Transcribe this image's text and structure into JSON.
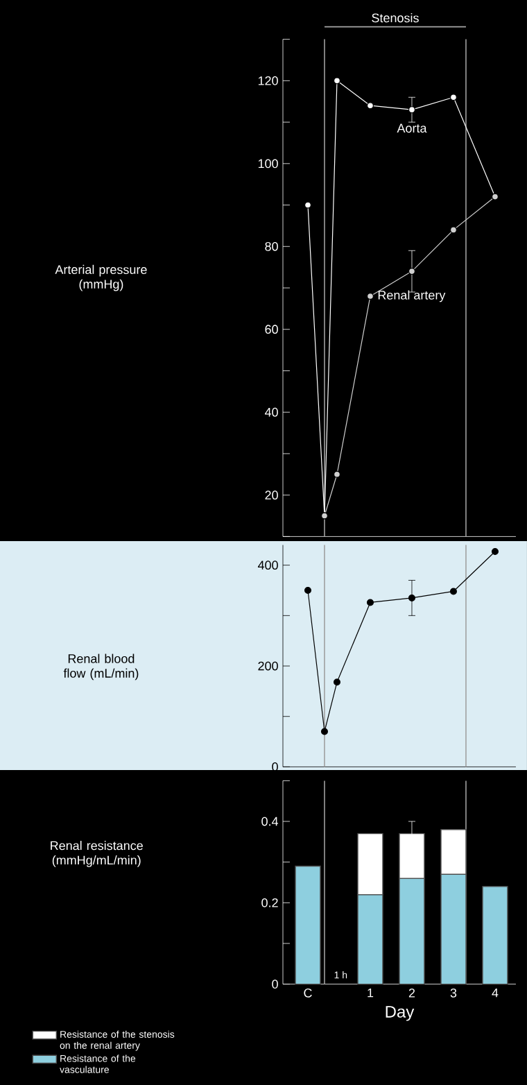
{
  "chart_data": [
    {
      "type": "line",
      "ylabel": "Arterial pressure (mmHg)",
      "xlim": [
        -1.1,
        4.5
      ],
      "ylim": [
        10,
        130
      ],
      "tick_labels": "y",
      "marker": "circle",
      "yticks": [
        {
          "value": 10,
          "label": null
        },
        20,
        {
          "value": 30,
          "label": null
        },
        40,
        {
          "value": 50,
          "label": null
        },
        60,
        {
          "value": 70,
          "label": null
        },
        80,
        {
          "value": 90,
          "label": null
        },
        100,
        {
          "value": 110,
          "label": null
        },
        120,
        {
          "value": 130,
          "label": null
        }
      ],
      "ref_lines": [
        {
          "axis": "x",
          "value": -0.1,
          "color": "#a0a0a0"
        },
        {
          "axis": "x",
          "value": 3.3,
          "color": "#a0a0a0"
        }
      ],
      "annotations": [
        "Stenosis"
      ],
      "series": [
        {
          "name": "Aorta",
          "color": "#ffffff",
          "x": [
            -0.5,
            -0.1,
            0.2,
            1,
            2,
            3,
            4
          ],
          "values": [
            90,
            15,
            120,
            114,
            113,
            116,
            92
          ],
          "errors": [
            null,
            null,
            null,
            null,
            3,
            null,
            null
          ]
        },
        {
          "name": "Renal artery",
          "color": "#d0d0d0",
          "x": [
            -0.1,
            0.2,
            1,
            2,
            3,
            4
          ],
          "values": [
            15,
            25,
            68,
            74,
            84,
            92
          ],
          "errors": [
            null,
            null,
            null,
            5,
            null,
            null
          ]
        }
      ]
    },
    {
      "type": "line",
      "ylabel": "Renal blood flow (mL/min)",
      "xlim": [
        -1.1,
        4.5
      ],
      "ylim": [
        0,
        440
      ],
      "tick_labels": "y",
      "marker": "circle",
      "yticks": [
        0,
        {
          "value": 100,
          "label": null
        },
        200,
        {
          "value": 300,
          "label": null
        },
        400
      ],
      "ref_lines": [
        {
          "axis": "x",
          "value": -0.1,
          "color": "#a0a0a0"
        },
        {
          "axis": "x",
          "value": 3.3,
          "color": "#a0a0a0"
        }
      ],
      "series": [
        {
          "color": "#000000",
          "x": [
            -0.5,
            -0.1,
            0.2,
            1,
            2,
            3,
            4
          ],
          "values": [
            350,
            70,
            168,
            326,
            335,
            348,
            427
          ],
          "errors": [
            null,
            null,
            null,
            null,
            35,
            null,
            null
          ]
        }
      ]
    },
    {
      "type": "bar",
      "stacked": true,
      "ylabel": "Renal resistance (mmHg/mL/min)",
      "xlabel": "Day",
      "xlim": [
        -1.1,
        4.5
      ],
      "ylim": [
        0,
        0.5
      ],
      "legend": "bottom left",
      "x": [
        -0.5,
        1,
        2,
        3,
        4
      ],
      "xticks": [
        {
          "value": -0.5,
          "label": "C"
        },
        1,
        2,
        3,
        4
      ],
      "yticks": [
        0,
        {
          "value": 0.1,
          "label": null
        },
        0.2,
        {
          "value": 0.3,
          "label": null
        },
        0.4,
        {
          "value": 0.5,
          "label": null
        }
      ],
      "ref_lines": [
        {
          "axis": "x",
          "value": -0.1,
          "color": "#a0a0a0"
        },
        {
          "axis": "x",
          "value": 3.3,
          "color": "#a0a0a0"
        }
      ],
      "annotations": [
        "1 h"
      ],
      "series": [
        {
          "name": "Resistance of the vasculature",
          "color": "#8ecfdf",
          "values": [
            0.29,
            0.22,
            0.26,
            0.27,
            0.24
          ]
        },
        {
          "name": "Resistance of the stenosis on the renal artery",
          "color": "#ffffff",
          "values": [
            null,
            0.15,
            0.11,
            0.11,
            null
          ],
          "errors": [
            null,
            null,
            0.03,
            null,
            null
          ]
        }
      ]
    }
  ]
}
